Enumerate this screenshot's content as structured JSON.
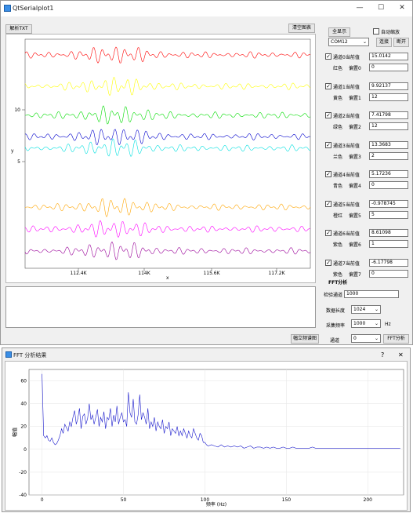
{
  "window": {
    "title": "QtSerialplot1",
    "minimize": "—",
    "maximize": "☐",
    "close": "✕"
  },
  "toolbar": {
    "parse_btn": "解析TXT",
    "clear_btn": "清空图表",
    "show_all_btn": "全显示",
    "auto_scale_label": "自动缩放",
    "port_value": "COM12",
    "connect_btn": "连接",
    "disconnect_btn": "断开"
  },
  "main_plot": {
    "y_axis_label": "y",
    "x_axis_label": "x",
    "y_ticks": [
      "10",
      "5"
    ],
    "x_ticks": [
      "112.4K",
      "114K",
      "115.6K",
      "117.2K"
    ]
  },
  "channels": [
    {
      "label": "通道0当前值",
      "value": "15.0142",
      "color_label": "红色",
      "offset_label": "偏置0",
      "offset": "0",
      "color": "#ff0000"
    },
    {
      "label": "通道1当前值",
      "value": "9.92137",
      "color_label": "黄色",
      "offset_label": "偏置1",
      "offset": "12",
      "color": "#ffff00"
    },
    {
      "label": "通道2当前值",
      "value": "7.41798",
      "color_label": "绿色",
      "offset_label": "偏置2",
      "offset": "12",
      "color": "#00dd00"
    },
    {
      "label": "通道3当前值",
      "value": "13.3683",
      "color_label": "兰色",
      "offset_label": "偏置3",
      "offset": "2",
      "color": "#0000cc"
    },
    {
      "label": "通道4当前值",
      "value": "5.17236",
      "color_label": "青色",
      "offset_label": "偏置4",
      "offset": "0",
      "color": "#00e0e0"
    },
    {
      "label": "通道5当前值",
      "value": "-0.978745",
      "color_label": "橙红",
      "offset_label": "偏置5",
      "offset": "5",
      "color": "#ffa500"
    },
    {
      "label": "通道6当前值",
      "value": "8.61098",
      "color_label": "紫色",
      "offset_label": "偏置6",
      "offset": "1",
      "color": "#ff00ff"
    },
    {
      "label": "通道7当前值",
      "value": "-6.17798",
      "color_label": "紫色",
      "offset_label": "偏置7",
      "offset": "0",
      "color": "#990099"
    }
  ],
  "fft_panel": {
    "section_label": "FFT分析",
    "channel_label": "检验通道",
    "channel_value": "1000",
    "length_label": "数据长度",
    "length_value": "1024",
    "rate_label": "采集频率",
    "rate_value": "1000",
    "rate_unit": "Hz",
    "show_btn": "幅立频谱图",
    "channel_sel_label": "通道",
    "channel_sel_value": "0",
    "fft_btn": "FFT分析"
  },
  "fft_window": {
    "title": "FFT 分析结果",
    "help": "?",
    "close": "✕",
    "y_label": "幅值",
    "x_label": "频率 (Hz)",
    "y_ticks": [
      "60",
      "40",
      "20",
      "0",
      "-20",
      "-40"
    ],
    "x_ticks": [
      "0",
      "50",
      "100",
      "150",
      "200"
    ]
  },
  "chart_data": {
    "type": "line",
    "xlabel": "频率 (Hz)",
    "ylabel": "幅值",
    "xlim": [
      -8,
      222
    ],
    "ylim": [
      -40,
      70
    ],
    "series": [
      {
        "points": [
          [
            0,
            66
          ],
          [
            1,
            12
          ],
          [
            2,
            10
          ],
          [
            3,
            12
          ],
          [
            4,
            8
          ],
          [
            5,
            7
          ],
          [
            6,
            10
          ],
          [
            7,
            6
          ],
          [
            8,
            4
          ],
          [
            9,
            5
          ],
          [
            10,
            8
          ],
          [
            11,
            12
          ],
          [
            12,
            18
          ],
          [
            13,
            14
          ],
          [
            14,
            22
          ],
          [
            15,
            19
          ],
          [
            16,
            16
          ],
          [
            17,
            24
          ],
          [
            18,
            20
          ],
          [
            19,
            28
          ],
          [
            20,
            34
          ],
          [
            21,
            22
          ],
          [
            22,
            27
          ],
          [
            23,
            36
          ],
          [
            24,
            18
          ],
          [
            25,
            29
          ],
          [
            26,
            31
          ],
          [
            27,
            22
          ],
          [
            28,
            27
          ],
          [
            29,
            40
          ],
          [
            30,
            26
          ],
          [
            31,
            30
          ],
          [
            32,
            22
          ],
          [
            33,
            28
          ],
          [
            34,
            35
          ],
          [
            35,
            20
          ],
          [
            36,
            28
          ],
          [
            37,
            24
          ],
          [
            38,
            33
          ],
          [
            39,
            18
          ],
          [
            40,
            28
          ],
          [
            41,
            26
          ],
          [
            42,
            36
          ],
          [
            43,
            20
          ],
          [
            44,
            30
          ],
          [
            45,
            24
          ],
          [
            46,
            38
          ],
          [
            47,
            22
          ],
          [
            48,
            28
          ],
          [
            49,
            32
          ],
          [
            50,
            24
          ],
          [
            51,
            26
          ],
          [
            52,
            20
          ],
          [
            53,
            50
          ],
          [
            54,
            32
          ],
          [
            55,
            28
          ],
          [
            56,
            44
          ],
          [
            57,
            24
          ],
          [
            58,
            22
          ],
          [
            59,
            30
          ],
          [
            60,
            48
          ],
          [
            61,
            26
          ],
          [
            62,
            32
          ],
          [
            63,
            28
          ],
          [
            64,
            22
          ],
          [
            65,
            36
          ],
          [
            66,
            18
          ],
          [
            67,
            24
          ],
          [
            68,
            20
          ],
          [
            69,
            28
          ],
          [
            70,
            16
          ],
          [
            71,
            24
          ],
          [
            72,
            20
          ],
          [
            73,
            18
          ],
          [
            74,
            26
          ],
          [
            75,
            14
          ],
          [
            76,
            20
          ],
          [
            77,
            18
          ],
          [
            78,
            24
          ],
          [
            79,
            12
          ],
          [
            80,
            18
          ],
          [
            81,
            16
          ],
          [
            82,
            14
          ],
          [
            83,
            20
          ],
          [
            84,
            12
          ],
          [
            85,
            16
          ],
          [
            86,
            12
          ],
          [
            87,
            18
          ],
          [
            88,
            14
          ],
          [
            89,
            10
          ],
          [
            90,
            16
          ],
          [
            91,
            12
          ],
          [
            92,
            10
          ],
          [
            93,
            18
          ],
          [
            94,
            14
          ],
          [
            95,
            10
          ],
          [
            96,
            8
          ],
          [
            97,
            14
          ],
          [
            98,
            12
          ],
          [
            99,
            6
          ],
          [
            100,
            6
          ],
          [
            101,
            4
          ],
          [
            102,
            3
          ],
          [
            104,
            4
          ],
          [
            106,
            3
          ],
          [
            108,
            2
          ],
          [
            110,
            4
          ],
          [
            112,
            2
          ],
          [
            114,
            3
          ],
          [
            116,
            2
          ],
          [
            118,
            3
          ],
          [
            120,
            2
          ],
          [
            122,
            3
          ],
          [
            124,
            1
          ],
          [
            126,
            2
          ],
          [
            128,
            3
          ],
          [
            130,
            1
          ],
          [
            132,
            2
          ],
          [
            134,
            2
          ],
          [
            136,
            1
          ],
          [
            138,
            2
          ],
          [
            140,
            1
          ],
          [
            142,
            2
          ],
          [
            144,
            1
          ],
          [
            146,
            1
          ],
          [
            148,
            2
          ],
          [
            150,
            1
          ],
          [
            152,
            1
          ],
          [
            154,
            2
          ],
          [
            156,
            1
          ],
          [
            158,
            1
          ],
          [
            160,
            1
          ],
          [
            162,
            1
          ],
          [
            164,
            1
          ],
          [
            166,
            2
          ],
          [
            168,
            1
          ],
          [
            170,
            1
          ],
          [
            172,
            1
          ],
          [
            174,
            1
          ],
          [
            176,
            1
          ],
          [
            178,
            1
          ],
          [
            180,
            1
          ],
          [
            182,
            1
          ],
          [
            184,
            1
          ],
          [
            186,
            1
          ],
          [
            188,
            1
          ],
          [
            190,
            1
          ],
          [
            192,
            1
          ],
          [
            194,
            1
          ],
          [
            196,
            1
          ],
          [
            198,
            1
          ],
          [
            200,
            1
          ],
          [
            202,
            1
          ],
          [
            204,
            1
          ],
          [
            206,
            1
          ],
          [
            208,
            1
          ],
          [
            210,
            1
          ],
          [
            212,
            1
          ],
          [
            214,
            1
          ],
          [
            216,
            1
          ],
          [
            218,
            1
          ],
          [
            220,
            1
          ]
        ]
      }
    ]
  }
}
